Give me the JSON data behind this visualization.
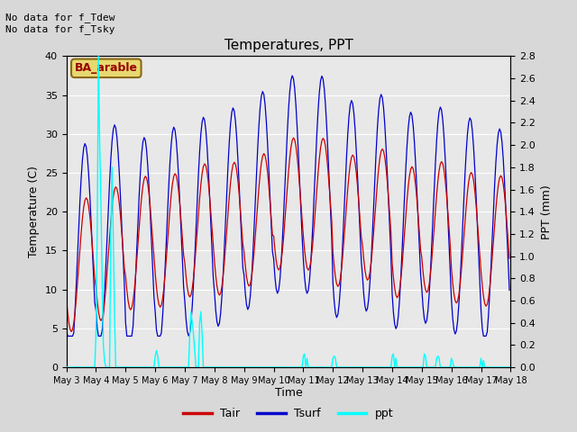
{
  "title": "Temperatures, PPT",
  "xlabel": "Time",
  "ylabel_left": "Temperature (C)",
  "ylabel_right": "PPT (mm)",
  "annotation_text": "No data for f_Tdew\nNo data for f_Tsky",
  "box_label": "BA_arable",
  "box_facecolor": "#e8d870",
  "box_edgecolor": "#8B6914",
  "box_textcolor": "#990000",
  "ylim_left": [
    0,
    40
  ],
  "ylim_right": [
    0.0,
    2.8
  ],
  "bg_color": "#d8d8d8",
  "plot_bg_color": "#e8e8e8",
  "grid_color": "#ffffff",
  "tair_color": "#cc0000",
  "tsurf_color": "#0000cc",
  "ppt_color": "#00ffff",
  "x_tick_labels": [
    "May 3",
    "May 4",
    "May 5",
    "May 6",
    "May 7",
    "May 8",
    "May 9",
    "May 10",
    "May 11",
    "May 12",
    "May 13",
    "May 14",
    "May 15",
    "May 16",
    "May 17",
    "May 18"
  ]
}
